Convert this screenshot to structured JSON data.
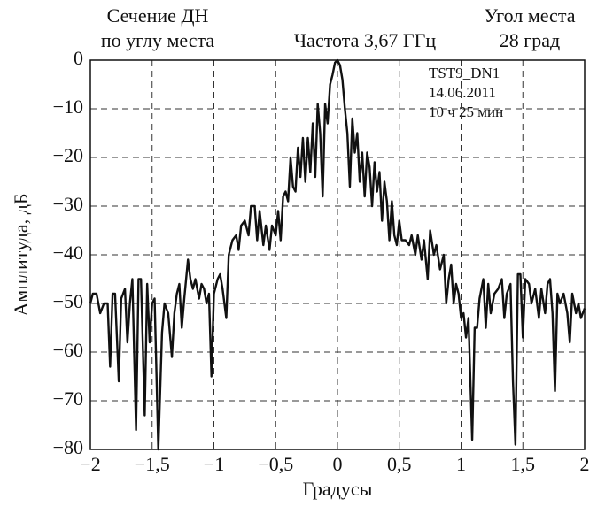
{
  "chart_data": {
    "type": "line",
    "title": "Частота 3,67 ГГц",
    "header_left": [
      "Сечение ДН",
      "по углу места"
    ],
    "header_right": [
      "Угол места",
      "28 град"
    ],
    "annotations": [
      "TST9_DN1",
      "14.06.2011",
      "10 ч 25 мин"
    ],
    "xlabel": "Градусы",
    "ylabel": "Амплитуда, дБ",
    "xlim": [
      -2,
      2
    ],
    "ylim": [
      -80,
      0
    ],
    "xticks": [
      {
        "value": -2,
        "label": "−2"
      },
      {
        "value": -1.5,
        "label": "−1,5"
      },
      {
        "value": -1,
        "label": "−1"
      },
      {
        "value": -0.5,
        "label": "−0,5"
      },
      0,
      {
        "value": 0.5,
        "label": "0,5"
      },
      1,
      {
        "value": 1.5,
        "label": "1,5"
      },
      2
    ],
    "yticks": [
      {
        "value": -80,
        "label": "−80"
      },
      {
        "value": -70,
        "label": "−70"
      },
      {
        "value": -60,
        "label": "−60"
      },
      {
        "value": -50,
        "label": "−50"
      },
      {
        "value": -40,
        "label": "−40"
      },
      {
        "value": -30,
        "label": "−30"
      },
      {
        "value": -20,
        "label": "−20"
      },
      {
        "value": -10,
        "label": "−10"
      },
      0
    ],
    "grid": true,
    "x": [
      -2.0,
      -1.98,
      -1.95,
      -1.92,
      -1.89,
      -1.86,
      -1.84,
      -1.82,
      -1.8,
      -1.77,
      -1.75,
      -1.72,
      -1.7,
      -1.68,
      -1.66,
      -1.63,
      -1.61,
      -1.59,
      -1.56,
      -1.54,
      -1.52,
      -1.5,
      -1.48,
      -1.45,
      -1.42,
      -1.4,
      -1.37,
      -1.34,
      -1.32,
      -1.3,
      -1.28,
      -1.26,
      -1.24,
      -1.21,
      -1.19,
      -1.17,
      -1.15,
      -1.12,
      -1.1,
      -1.08,
      -1.06,
      -1.04,
      -1.02,
      -1.0,
      -0.97,
      -0.95,
      -0.93,
      -0.9,
      -0.88,
      -0.85,
      -0.82,
      -0.8,
      -0.78,
      -0.75,
      -0.72,
      -0.7,
      -0.67,
      -0.65,
      -0.63,
      -0.6,
      -0.58,
      -0.55,
      -0.53,
      -0.5,
      -0.48,
      -0.46,
      -0.44,
      -0.42,
      -0.4,
      -0.38,
      -0.36,
      -0.34,
      -0.32,
      -0.3,
      -0.28,
      -0.26,
      -0.24,
      -0.22,
      -0.2,
      -0.18,
      -0.16,
      -0.14,
      -0.12,
      -0.1,
      -0.08,
      -0.06,
      -0.04,
      -0.02,
      0,
      0.02,
      0.04,
      0.06,
      0.08,
      0.1,
      0.12,
      0.14,
      0.16,
      0.18,
      0.2,
      0.22,
      0.24,
      0.26,
      0.28,
      0.3,
      0.32,
      0.34,
      0.36,
      0.38,
      0.4,
      0.42,
      0.44,
      0.46,
      0.48,
      0.5,
      0.52,
      0.55,
      0.58,
      0.6,
      0.63,
      0.65,
      0.68,
      0.7,
      0.73,
      0.75,
      0.78,
      0.8,
      0.83,
      0.86,
      0.88,
      0.9,
      0.92,
      0.94,
      0.96,
      0.98,
      1.0,
      1.02,
      1.04,
      1.06,
      1.09,
      1.11,
      1.13,
      1.15,
      1.18,
      1.2,
      1.22,
      1.24,
      1.27,
      1.3,
      1.33,
      1.35,
      1.37,
      1.4,
      1.42,
      1.44,
      1.46,
      1.48,
      1.5,
      1.52,
      1.55,
      1.57,
      1.6,
      1.63,
      1.65,
      1.68,
      1.7,
      1.72,
      1.74,
      1.76,
      1.78,
      1.8,
      1.83,
      1.86,
      1.88,
      1.9,
      1.93,
      1.95,
      1.97,
      2.0
    ],
    "series": [
      {
        "color": "#111111",
        "values": [
          -50,
          -48,
          -48,
          -52,
          -50,
          -50,
          -63,
          -48,
          -48,
          -66,
          -49,
          -47,
          -58,
          -50,
          -45,
          -76,
          -45,
          -45,
          -73,
          -46,
          -58,
          -50,
          -49,
          -80,
          -56,
          -50,
          -52,
          -61,
          -52,
          -48,
          -46,
          -55,
          -49,
          -41,
          -45,
          -47,
          -45,
          -49,
          -46,
          -47,
          -50,
          -48,
          -65,
          -48,
          -45,
          -44,
          -47,
          -53,
          -40,
          -37,
          -36,
          -39,
          -34,
          -33,
          -36,
          -30,
          -30,
          -37,
          -31,
          -38,
          -34,
          -39,
          -34,
          -36,
          -31,
          -37,
          -28,
          -27,
          -29,
          -20,
          -26,
          -27,
          -18,
          -24,
          -16,
          -25,
          -16,
          -23,
          -13,
          -24,
          -9,
          -15,
          -28,
          -9,
          -13,
          -5,
          -3,
          -0.5,
          0,
          -1,
          -4,
          -10,
          -15,
          -26,
          -12,
          -19,
          -15,
          -25,
          -19,
          -28,
          -19,
          -22,
          -30,
          -21,
          -27,
          -23,
          -33,
          -25,
          -29,
          -37,
          -29,
          -36,
          -38,
          -33,
          -37,
          -37,
          -38,
          -36,
          -40,
          -36,
          -41,
          -37,
          -45,
          -35,
          -40,
          -38,
          -43,
          -40,
          -50,
          -45,
          -42,
          -50,
          -46,
          -48,
          -53,
          -52,
          -57,
          -53,
          -78,
          -55,
          -55,
          -49,
          -45,
          -55,
          -46,
          -52,
          -48,
          -47,
          -45,
          -53,
          -48,
          -46,
          -66,
          -79,
          -44,
          -44,
          -57,
          -45,
          -46,
          -50,
          -47,
          -53,
          -47,
          -52,
          -46,
          -45,
          -52,
          -68,
          -48,
          -50,
          -48,
          -52,
          -58,
          -48,
          -52,
          -50,
          -53,
          -51
        ]
      }
    ]
  }
}
